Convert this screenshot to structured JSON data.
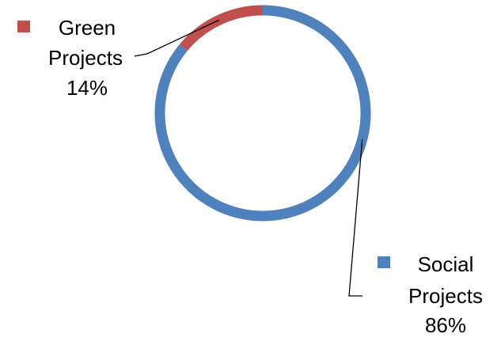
{
  "chart_data": {
    "type": "doughnut",
    "title": "",
    "series": [
      {
        "categories": [
          "Social Projects",
          "Green Projects"
        ],
        "values": [
          86,
          14
        ],
        "colors": [
          "#4F81BD",
          "#C0504D"
        ]
      }
    ],
    "data_labels": [
      {
        "category": "Green Projects",
        "lines": [
          "Green",
          "Projects",
          "14%"
        ],
        "legend_key_color": "#C0504D"
      },
      {
        "category": "Social Projects",
        "lines": [
          "Social",
          "Projects",
          "86%"
        ],
        "legend_key_color": "#4F81BD"
      }
    ],
    "legend": "none",
    "start_angle": "top",
    "direction": "clockwise"
  }
}
